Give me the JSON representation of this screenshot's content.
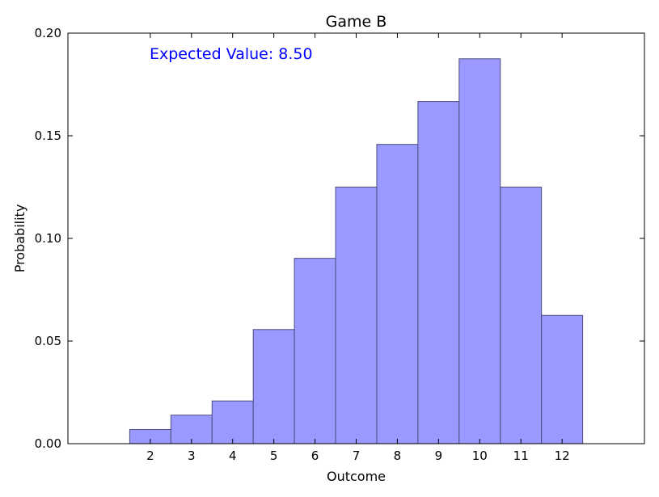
{
  "chart_data": {
    "type": "bar",
    "title": "Game B",
    "xlabel": "Outcome",
    "ylabel": "Probability",
    "categories": [
      "2",
      "3",
      "4",
      "5",
      "6",
      "7",
      "8",
      "9",
      "10",
      "11",
      "12"
    ],
    "x": [
      2,
      3,
      4,
      5,
      6,
      7,
      8,
      9,
      10,
      11,
      12
    ],
    "values": [
      0.0069,
      0.0139,
      0.0208,
      0.0556,
      0.0903,
      0.125,
      0.1458,
      0.1667,
      0.1875,
      0.125,
      0.0625
    ],
    "xlim": [
      0,
      14
    ],
    "ylim": [
      0,
      0.2
    ],
    "yticks": [
      "0.00",
      "0.05",
      "0.10",
      "0.15",
      "0.20"
    ],
    "grid": false,
    "annotation": "Expected Value: 8.50",
    "colors": {
      "bar_fill": "#9999ff",
      "bar_stroke": "#4d4d80",
      "annotation": "#0000ff",
      "axes": "#000000"
    }
  }
}
